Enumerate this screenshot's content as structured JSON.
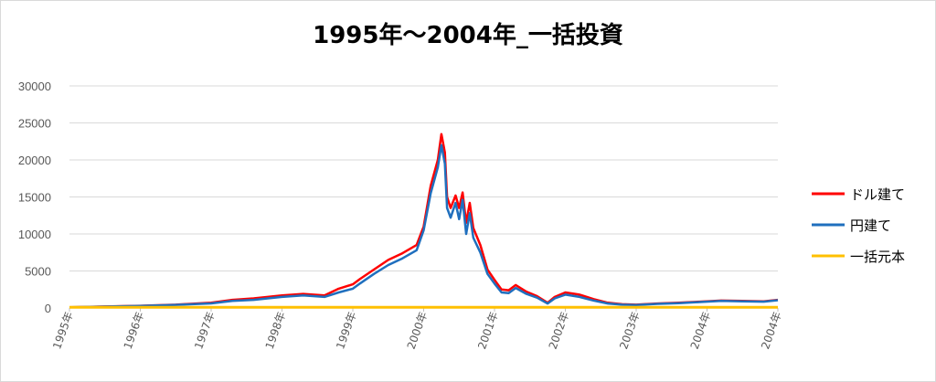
{
  "chart_data": {
    "type": "line",
    "title": "1995年～2004年_一括投資",
    "xlabel": "",
    "ylabel": "",
    "ylim": [
      0,
      30000
    ],
    "yticks": [
      "0",
      "5000",
      "10000",
      "15000",
      "20000",
      "25000",
      "30000"
    ],
    "xticks": [
      "1995年",
      "1996年",
      "1997年",
      "1998年",
      "1999年",
      "2000年",
      "2001年",
      "2002年",
      "2003年",
      "2004年",
      "2004年"
    ],
    "grid": true,
    "legend_position": "right",
    "x": [
      1995.0,
      1995.5,
      1996.0,
      1996.5,
      1997.0,
      1997.3,
      1997.6,
      1998.0,
      1998.3,
      1998.6,
      1998.8,
      1999.0,
      1999.1,
      1999.3,
      1999.5,
      1999.7,
      1999.9,
      2000.0,
      2000.1,
      2000.2,
      2000.25,
      2000.3,
      2000.33,
      2000.38,
      2000.45,
      2000.5,
      2000.55,
      2000.6,
      2000.65,
      2000.7,
      2000.8,
      2000.9,
      2001.0,
      2001.1,
      2001.2,
      2001.3,
      2001.45,
      2001.6,
      2001.75,
      2001.85,
      2002.0,
      2002.2,
      2002.4,
      2002.6,
      2002.8,
      2003.0,
      2003.3,
      2003.6,
      2003.9,
      2004.2,
      2004.5,
      2004.8,
      2005.0
    ],
    "series": [
      {
        "name": "ドル建て",
        "color": "#ff0000",
        "values": [
          100,
          200,
          300,
          450,
          700,
          1100,
          1300,
          1700,
          1900,
          1700,
          2600,
          3200,
          3900,
          5200,
          6500,
          7400,
          8500,
          11000,
          16500,
          20000,
          23500,
          21000,
          15000,
          13500,
          15200,
          13500,
          15600,
          11500,
          14200,
          10800,
          8500,
          5200,
          3800,
          2500,
          2400,
          3100,
          2200,
          1600,
          700,
          1500,
          2100,
          1800,
          1200,
          700,
          500,
          450,
          600,
          700,
          850,
          1000,
          950,
          900,
          1100
        ]
      },
      {
        "name": "円建て",
        "color": "#1f6fbe",
        "values": [
          100,
          190,
          280,
          420,
          620,
          950,
          1100,
          1500,
          1700,
          1500,
          2100,
          2600,
          3300,
          4600,
          5800,
          6700,
          7800,
          10500,
          15500,
          19000,
          22000,
          19500,
          13500,
          12200,
          14200,
          12000,
          14600,
          10000,
          12800,
          9500,
          7500,
          4600,
          3300,
          2100,
          2000,
          2700,
          1900,
          1400,
          600,
          1300,
          1800,
          1500,
          1000,
          600,
          450,
          400,
          550,
          650,
          800,
          950,
          900,
          850,
          1050
        ]
      },
      {
        "name": "一括元本",
        "color": "#ffc000",
        "values": [
          100,
          100,
          100,
          100,
          100,
          100,
          100,
          100,
          100,
          100,
          100,
          100,
          100,
          100,
          100,
          100,
          100,
          100,
          100,
          100,
          100,
          100,
          100,
          100,
          100,
          100,
          100,
          100,
          100,
          100,
          100,
          100,
          100,
          100,
          100,
          100,
          100,
          100,
          100,
          100,
          100,
          100,
          100,
          100,
          100,
          100,
          100,
          100,
          100,
          100,
          100,
          100,
          100
        ]
      }
    ]
  }
}
